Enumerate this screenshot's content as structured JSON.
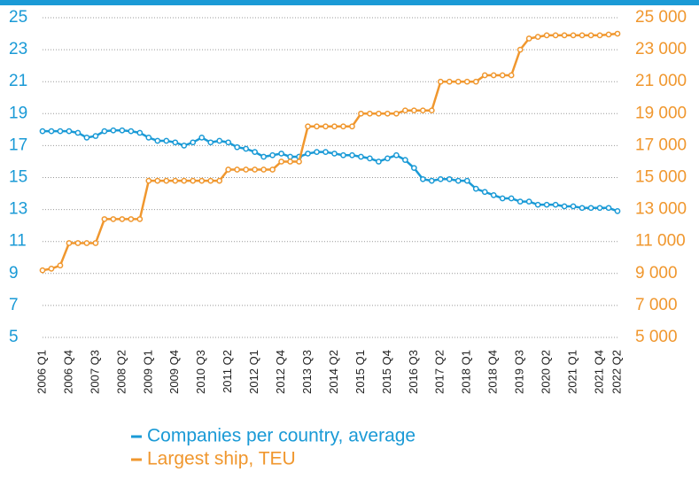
{
  "chart_data": {
    "type": "line",
    "categories": [
      "2006 Q1",
      null,
      null,
      "2006 Q4",
      null,
      null,
      "2007 Q3",
      null,
      null,
      "2008 Q2",
      null,
      null,
      "2009 Q1",
      null,
      null,
      "2009 Q4",
      null,
      null,
      "2010 Q3",
      null,
      null,
      "2011 Q2",
      null,
      null,
      "2012 Q1",
      null,
      null,
      "2012 Q4",
      null,
      null,
      "2013 Q3",
      null,
      null,
      "2014 Q2",
      null,
      null,
      "2015 Q1",
      null,
      null,
      "2015 Q4",
      null,
      null,
      "2016 Q3",
      null,
      null,
      "2017 Q2",
      null,
      null,
      "2018 Q1",
      null,
      null,
      "2018 Q4",
      null,
      null,
      "2019 Q3",
      null,
      null,
      "2020 Q2",
      null,
      null,
      "2021 Q1",
      null,
      null,
      "2021 Q4",
      null,
      "2022 Q2"
    ],
    "series": [
      {
        "name": "Companies per country, average",
        "color": "#1a9ad6",
        "values": [
          17.9,
          17.9,
          17.9,
          17.9,
          17.8,
          17.5,
          17.6,
          17.9,
          17.95,
          17.95,
          17.9,
          17.8,
          17.5,
          17.3,
          17.3,
          17.2,
          17.0,
          17.2,
          17.5,
          17.2,
          17.3,
          17.2,
          16.9,
          16.8,
          16.6,
          16.3,
          16.4,
          16.5,
          16.3,
          16.3,
          16.5,
          16.6,
          16.6,
          16.5,
          16.4,
          16.4,
          16.3,
          16.2,
          16.0,
          16.2,
          16.4,
          16.1,
          15.6,
          14.9,
          14.8,
          14.9,
          14.9,
          14.8,
          14.8,
          14.3,
          14.1,
          13.9,
          13.7,
          13.7,
          13.5,
          13.5,
          13.3,
          13.3,
          13.3,
          13.2,
          13.2,
          13.1,
          13.1,
          13.1,
          13.1,
          12.9
        ]
      },
      {
        "name": "Largest ship, TEU",
        "color": "#f0972e",
        "axis": "y2",
        "values": [
          9200,
          9300,
          9500,
          10900,
          10900,
          10900,
          10900,
          12400,
          12400,
          12400,
          12400,
          12400,
          14800,
          14800,
          14800,
          14800,
          14800,
          14800,
          14800,
          14800,
          14800,
          15500,
          15500,
          15500,
          15500,
          15500,
          15500,
          16000,
          16000,
          16000,
          18200,
          18200,
          18200,
          18200,
          18200,
          18200,
          19000,
          19000,
          19000,
          19000,
          19000,
          19200,
          19200,
          19200,
          19200,
          21000,
          21000,
          21000,
          21000,
          21000,
          21400,
          21400,
          21400,
          21400,
          23000,
          23700,
          23800,
          23900,
          23900,
          23900,
          23900,
          23900,
          23900,
          23900,
          23950,
          24000
        ]
      }
    ],
    "ylim": [
      5,
      25
    ],
    "yticks": [
      5,
      7,
      9,
      11,
      13,
      15,
      17,
      19,
      21,
      23,
      25
    ],
    "y2lim": [
      5000,
      25000
    ],
    "y2ticks": [
      {
        "value": 5000,
        "label": "5 000"
      },
      {
        "value": 7000,
        "label": "7 000"
      },
      {
        "value": 9000,
        "label": "9 000"
      },
      {
        "value": 11000,
        "label": "11 000"
      },
      {
        "value": 13000,
        "label": "13 000"
      },
      {
        "value": 15000,
        "label": "15 000"
      },
      {
        "value": 17000,
        "label": "17 000"
      },
      {
        "value": 19000,
        "label": "19 000"
      },
      {
        "value": 21000,
        "label": "21 000"
      },
      {
        "value": 23000,
        "label": "23 000"
      },
      {
        "value": 25000,
        "label": "25 000"
      }
    ],
    "grid": true
  }
}
